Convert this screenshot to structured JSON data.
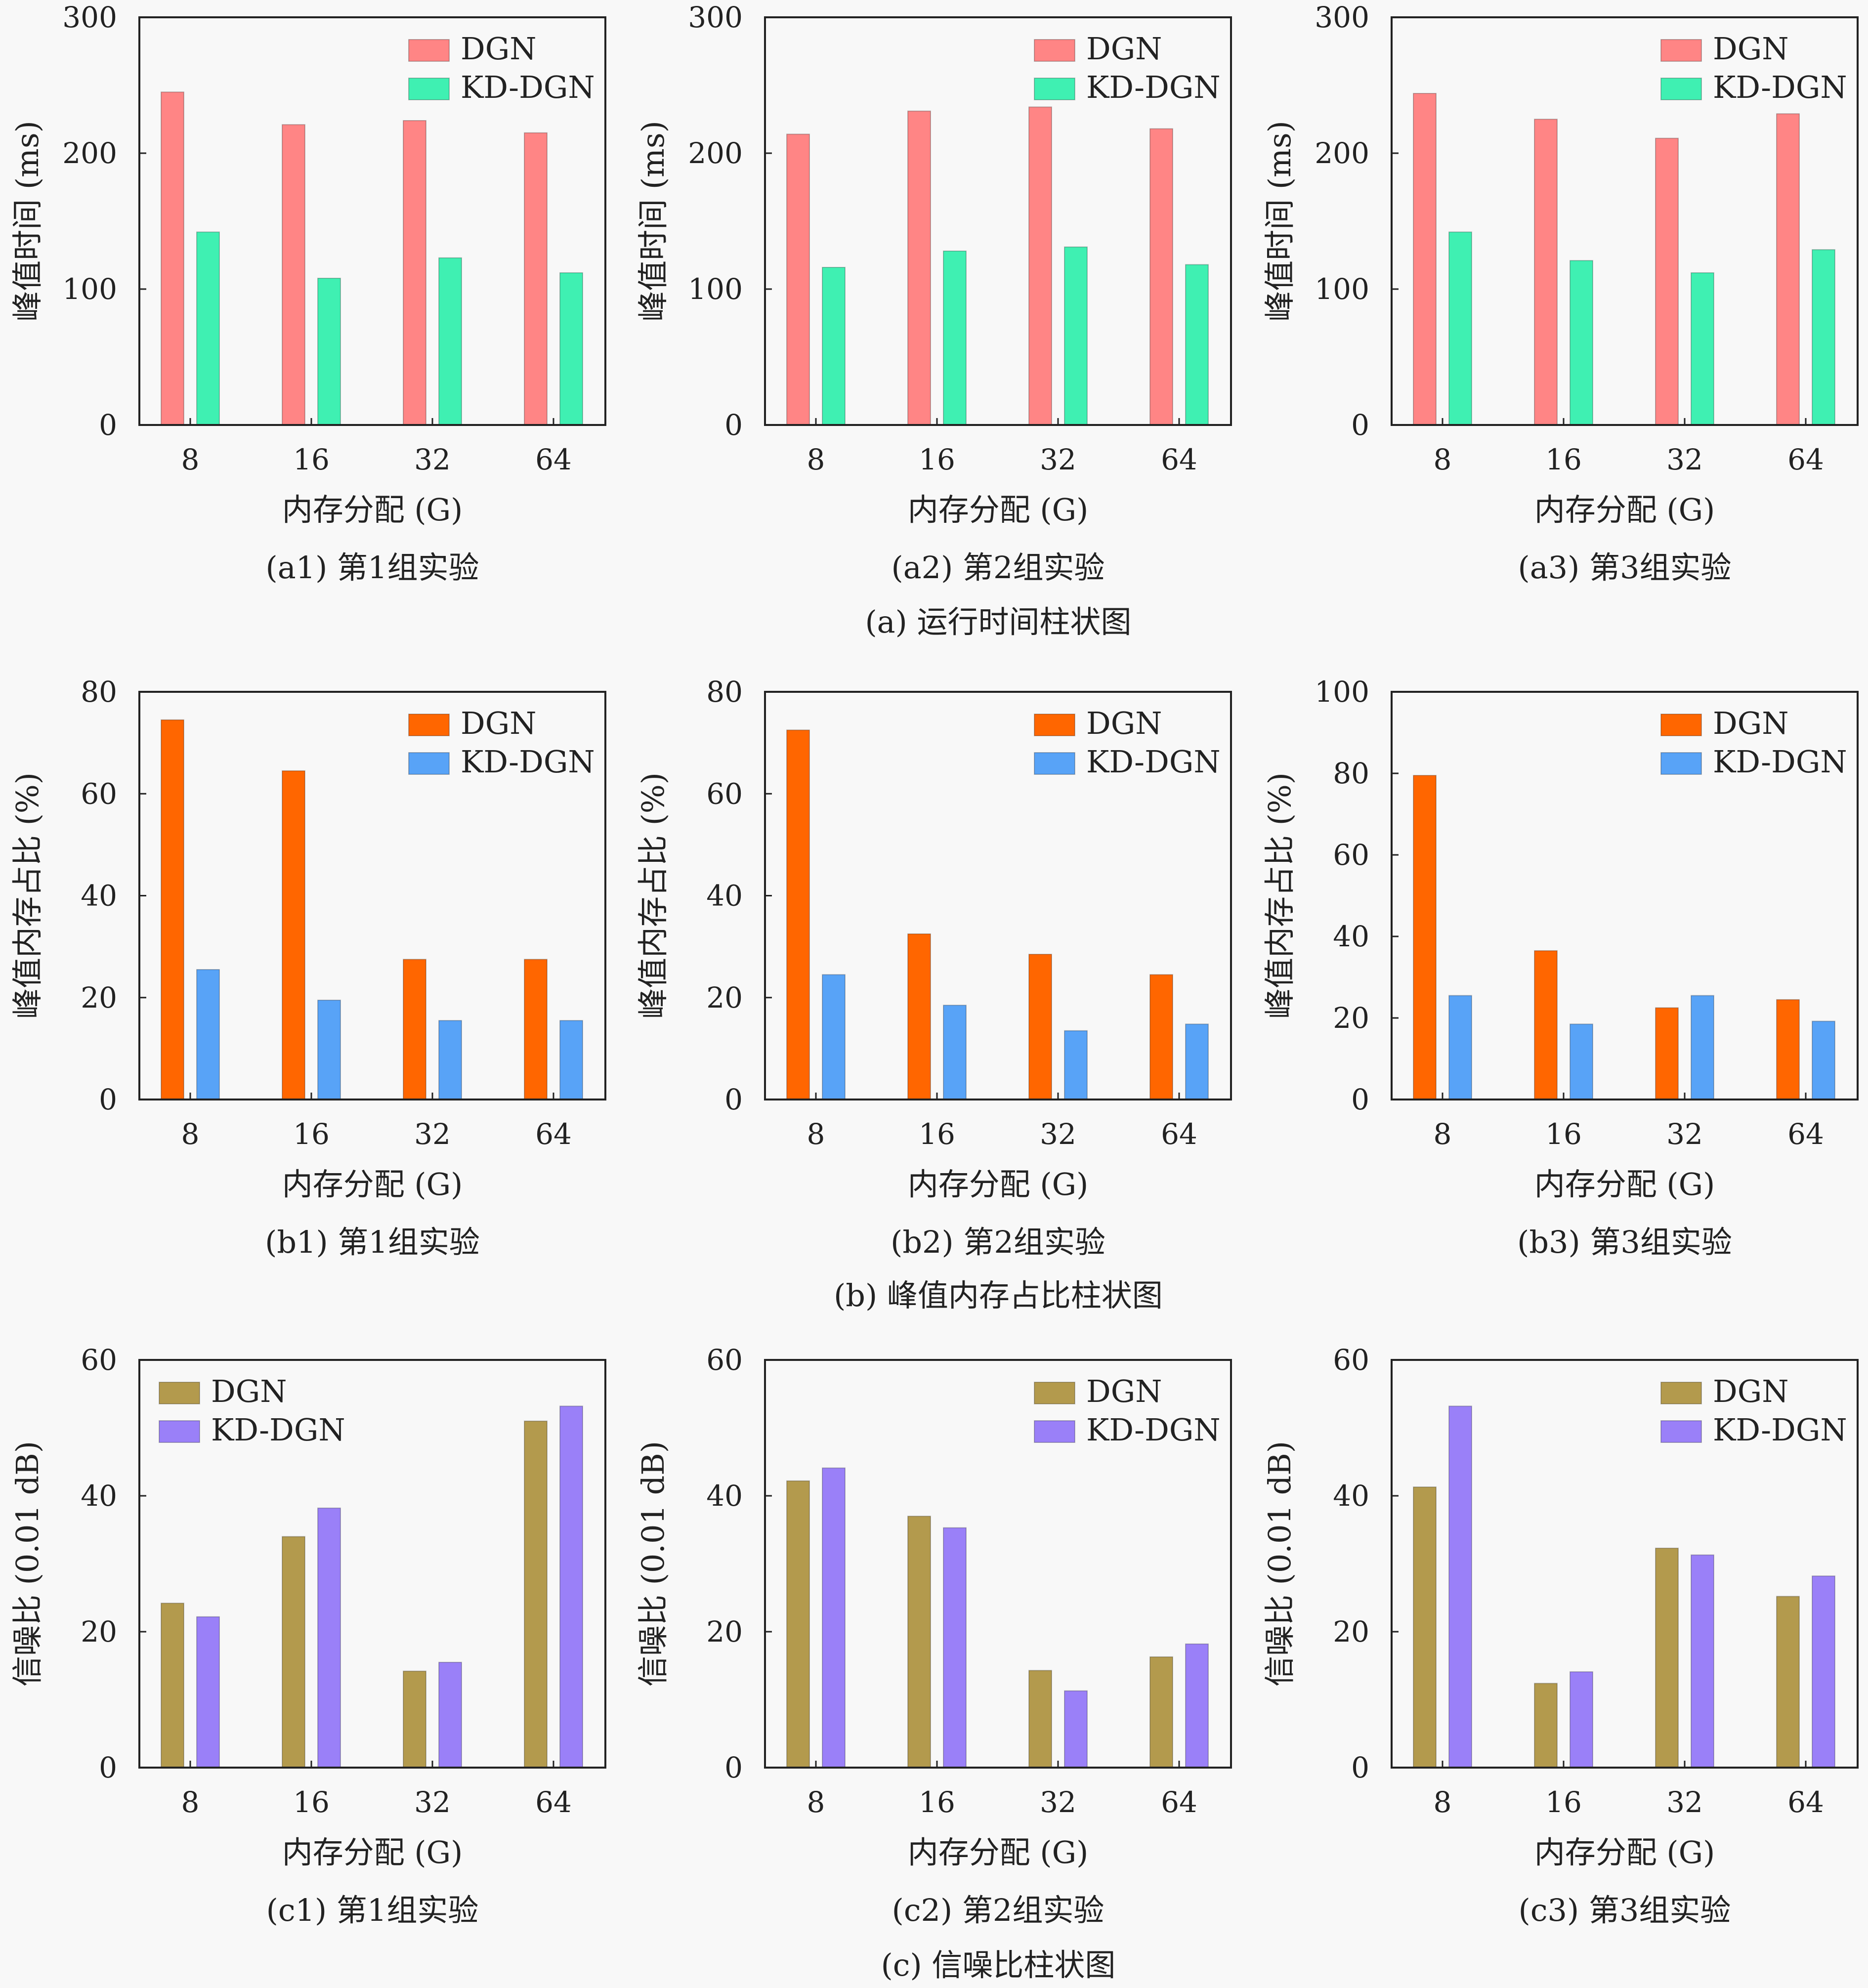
{
  "colors": {
    "background": "#f8f8f8",
    "axis": "#222222",
    "row_a": {
      "DGN": "#ff8585",
      "KD-DGN": "#3ff0b2"
    },
    "row_b": {
      "DGN": "#ff6600",
      "KD-DGN": "#58a3f7"
    },
    "row_c": {
      "DGN": "#b39a4d",
      "KD-DGN": "#9a80f8"
    }
  },
  "row_captions": [
    "(a) 运行时间柱状图",
    "(b) 峰值内存占比柱状图",
    "(c) 信噪比柱状图"
  ],
  "chart_data": [
    {
      "id": "a1",
      "row": 0,
      "col": 0,
      "type": "bar",
      "caption": "(a1) 第1组实验",
      "xlabel": "内存分配 (G)",
      "ylabel": "峰值时间 (ms)",
      "categories": [
        "8",
        "16",
        "32",
        "64"
      ],
      "ylim": [
        0,
        300
      ],
      "yticks": [
        "0",
        "100",
        "200",
        "300"
      ],
      "legend": "top-right",
      "grid": false,
      "series": [
        {
          "name": "DGN",
          "values": [
            245,
            221,
            224,
            215
          ]
        },
        {
          "name": "KD-DGN",
          "values": [
            142,
            108,
            123,
            112
          ]
        }
      ]
    },
    {
      "id": "a2",
      "row": 0,
      "col": 1,
      "type": "bar",
      "caption": "(a2) 第2组实验",
      "xlabel": "内存分配 (G)",
      "ylabel": "峰值时间 (ms)",
      "categories": [
        "8",
        "16",
        "32",
        "64"
      ],
      "ylim": [
        0,
        300
      ],
      "yticks": [
        "0",
        "100",
        "200",
        "300"
      ],
      "legend": "top-right",
      "grid": false,
      "series": [
        {
          "name": "DGN",
          "values": [
            214,
            231,
            234,
            218
          ]
        },
        {
          "name": "KD-DGN",
          "values": [
            116,
            128,
            131,
            118
          ]
        }
      ]
    },
    {
      "id": "a3",
      "row": 0,
      "col": 2,
      "type": "bar",
      "caption": "(a3) 第3组实验",
      "xlabel": "内存分配 (G)",
      "ylabel": "峰值时间 (ms)",
      "categories": [
        "8",
        "16",
        "32",
        "64"
      ],
      "ylim": [
        0,
        300
      ],
      "yticks": [
        "0",
        "100",
        "200",
        "300"
      ],
      "legend": "top-right",
      "grid": false,
      "series": [
        {
          "name": "DGN",
          "values": [
            244,
            225,
            211,
            229
          ]
        },
        {
          "name": "KD-DGN",
          "values": [
            142,
            121,
            112,
            129
          ]
        }
      ]
    },
    {
      "id": "b1",
      "row": 1,
      "col": 0,
      "type": "bar",
      "caption": "(b1) 第1组实验",
      "xlabel": "内存分配 (G)",
      "ylabel": "峰值内存占比 (%)",
      "categories": [
        "8",
        "16",
        "32",
        "64"
      ],
      "ylim": [
        0,
        80
      ],
      "yticks": [
        "0",
        "20",
        "40",
        "60",
        "80"
      ],
      "legend": "top-right",
      "grid": false,
      "series": [
        {
          "name": "DGN",
          "values": [
            74.5,
            64.5,
            27.5,
            27.5
          ]
        },
        {
          "name": "KD-DGN",
          "values": [
            25.5,
            19.5,
            15.5,
            15.5
          ]
        }
      ]
    },
    {
      "id": "b2",
      "row": 1,
      "col": 1,
      "type": "bar",
      "caption": "(b2) 第2组实验",
      "xlabel": "内存分配 (G)",
      "ylabel": "峰值内存占比 (%)",
      "categories": [
        "8",
        "16",
        "32",
        "64"
      ],
      "ylim": [
        0,
        80
      ],
      "yticks": [
        "0",
        "20",
        "40",
        "60",
        "80"
      ],
      "legend": "top-right",
      "grid": false,
      "series": [
        {
          "name": "DGN",
          "values": [
            72.5,
            32.5,
            28.5,
            24.5
          ]
        },
        {
          "name": "KD-DGN",
          "values": [
            24.5,
            18.5,
            13.5,
            14.8
          ]
        }
      ]
    },
    {
      "id": "b3",
      "row": 1,
      "col": 2,
      "type": "bar",
      "caption": "(b3) 第3组实验",
      "xlabel": "内存分配 (G)",
      "ylabel": "峰值内存占比 (%)",
      "categories": [
        "8",
        "16",
        "32",
        "64"
      ],
      "ylim": [
        0,
        100
      ],
      "yticks": [
        "0",
        "20",
        "40",
        "60",
        "80",
        "100"
      ],
      "legend": "top-right",
      "grid": false,
      "series": [
        {
          "name": "DGN",
          "values": [
            79.5,
            36.5,
            22.5,
            24.5
          ]
        },
        {
          "name": "KD-DGN",
          "values": [
            25.5,
            18.5,
            25.5,
            19.2
          ]
        }
      ]
    },
    {
      "id": "c1",
      "row": 2,
      "col": 0,
      "type": "bar",
      "caption": "(c1) 第1组实验",
      "xlabel": "内存分配 (G)",
      "ylabel": "信噪比 (0.01 dB)",
      "categories": [
        "8",
        "16",
        "32",
        "64"
      ],
      "ylim": [
        0,
        60
      ],
      "yticks": [
        "0",
        "20",
        "40",
        "60"
      ],
      "legend": "top-left",
      "grid": false,
      "series": [
        {
          "name": "DGN",
          "values": [
            24.2,
            34,
            14.2,
            51
          ]
        },
        {
          "name": "KD-DGN",
          "values": [
            22.2,
            38.2,
            15.5,
            53.2
          ]
        }
      ]
    },
    {
      "id": "c2",
      "row": 2,
      "col": 1,
      "type": "bar",
      "caption": "(c2) 第2组实验",
      "xlabel": "内存分配 (G)",
      "ylabel": "信噪比 (0.01 dB)",
      "categories": [
        "8",
        "16",
        "32",
        "64"
      ],
      "ylim": [
        0,
        60
      ],
      "yticks": [
        "0",
        "20",
        "40",
        "60"
      ],
      "legend": "top-right",
      "grid": false,
      "series": [
        {
          "name": "DGN",
          "values": [
            42.2,
            37,
            14.3,
            16.3
          ]
        },
        {
          "name": "KD-DGN",
          "values": [
            44.1,
            35.3,
            11.3,
            18.2
          ]
        }
      ]
    },
    {
      "id": "c3",
      "row": 2,
      "col": 2,
      "type": "bar",
      "caption": "(c3) 第3组实验",
      "xlabel": "内存分配 (G)",
      "ylabel": "信噪比 (0.01 dB)",
      "categories": [
        "8",
        "16",
        "32",
        "64"
      ],
      "ylim": [
        0,
        60
      ],
      "yticks": [
        "0",
        "20",
        "40",
        "60"
      ],
      "legend": "top-right",
      "grid": false,
      "series": [
        {
          "name": "DGN",
          "values": [
            41.3,
            12.4,
            32.3,
            25.2
          ]
        },
        {
          "name": "KD-DGN",
          "values": [
            53.2,
            14.1,
            31.3,
            28.2
          ]
        }
      ]
    }
  ]
}
